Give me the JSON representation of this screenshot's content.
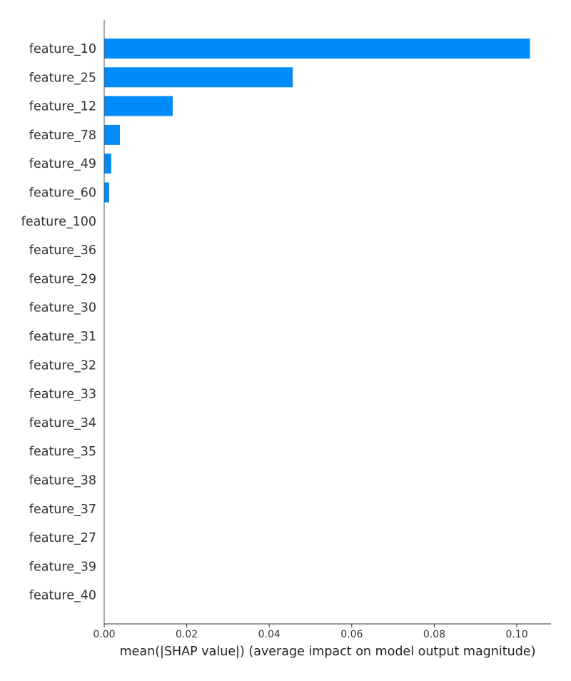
{
  "chart_data": {
    "type": "bar",
    "orientation": "horizontal",
    "categories": [
      "feature_10",
      "feature_25",
      "feature_12",
      "feature_78",
      "feature_49",
      "feature_60",
      "feature_100",
      "feature_36",
      "feature_29",
      "feature_30",
      "feature_31",
      "feature_32",
      "feature_33",
      "feature_34",
      "feature_35",
      "feature_38",
      "feature_37",
      "feature_27",
      "feature_39",
      "feature_40"
    ],
    "values": [
      0.1032,
      0.0457,
      0.0166,
      0.0038,
      0.0017,
      0.0012,
      0,
      0,
      0,
      0,
      0,
      0,
      0,
      0,
      0,
      0,
      0,
      0,
      0,
      0
    ],
    "xlabel": "mean(|SHAP value|) (average impact on model output magnitude)",
    "ylabel": "",
    "xlim": [
      0,
      0.1083
    ],
    "xticks": [
      0.0,
      0.02,
      0.04,
      0.06,
      0.08,
      0.1
    ],
    "xtick_labels": [
      "0.00",
      "0.02",
      "0.04",
      "0.06",
      "0.08",
      "0.10"
    ],
    "grid": false,
    "bar_color": "#008bfb"
  }
}
